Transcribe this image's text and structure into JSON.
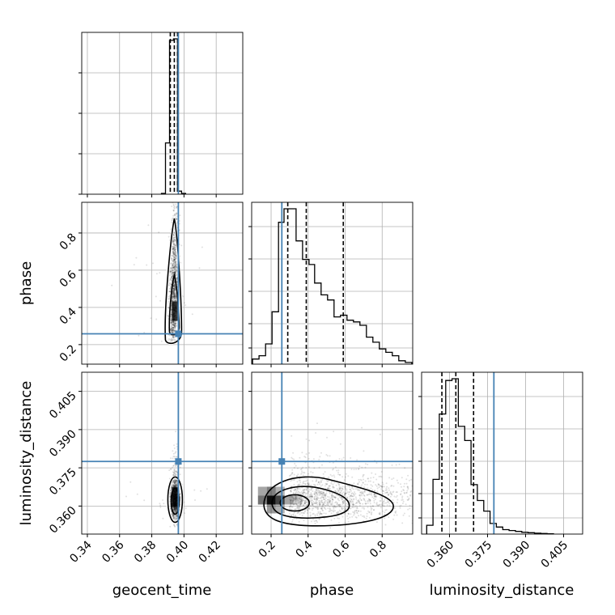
{
  "chart_data": {
    "type": "scatter",
    "title": "",
    "parameters": [
      "geocent_time",
      "phase",
      "luminosity_distance"
    ],
    "truths": {
      "geocent_time": 0.3965,
      "phase": 0.258,
      "luminosity_distance": 0.3775
    },
    "quantiles": {
      "geocent_time": [
        0.3915,
        0.394,
        0.396
      ],
      "phase": [
        0.29,
        0.39,
        0.59
      ],
      "luminosity_distance": [
        0.357,
        0.3625,
        0.3695
      ]
    },
    "ranges": {
      "geocent_time": [
        0.3365,
        0.4365
      ],
      "phase": [
        0.095,
        0.965
      ],
      "luminosity_distance": [
        0.349,
        0.4125
      ]
    },
    "axis_labels": {
      "geocent_time": "geocent_time",
      "phase": "phase",
      "luminosity_distance": "luminosity_distance"
    },
    "ticks": {
      "geocent_time": [
        "0.34",
        "0.36",
        "0.38",
        "0.40",
        "0.42"
      ],
      "phase": [
        "0.2",
        "0.4",
        "0.6",
        "0.8"
      ],
      "luminosity_distance": [
        "0.360",
        "0.375",
        "0.390",
        "0.405"
      ]
    },
    "histograms": {
      "geocent_time": {
        "edges": [
          0.386,
          0.3885,
          0.391,
          0.3935,
          0.396,
          0.3985,
          0.401
        ],
        "counts": [
          0.005,
          0.33,
          0.99,
          1.0,
          0.02,
          0.005
        ]
      },
      "phase": {
        "edges": [
          0.1,
          0.135,
          0.17,
          0.205,
          0.24,
          0.27,
          0.3,
          0.335,
          0.37,
          0.405,
          0.435,
          0.47,
          0.505,
          0.54,
          0.575,
          0.61,
          0.645,
          0.68,
          0.715,
          0.75,
          0.785,
          0.82,
          0.855,
          0.89,
          0.925,
          0.96
        ],
        "counts": [
          0.03,
          0.05,
          0.12,
          0.31,
          0.84,
          0.92,
          0.92,
          0.73,
          0.62,
          0.59,
          0.48,
          0.41,
          0.38,
          0.28,
          0.29,
          0.26,
          0.25,
          0.23,
          0.16,
          0.13,
          0.09,
          0.07,
          0.05,
          0.02,
          0.01
        ]
      },
      "luminosity_distance": {
        "edges": [
          0.351,
          0.3535,
          0.356,
          0.3585,
          0.361,
          0.3635,
          0.366,
          0.3685,
          0.371,
          0.3735,
          0.376,
          0.3785,
          0.381,
          0.3835,
          0.386,
          0.3885,
          0.391,
          0.3935,
          0.396,
          0.3985,
          0.401
        ],
        "counts": [
          0.05,
          0.31,
          0.68,
          0.87,
          0.88,
          0.61,
          0.53,
          0.28,
          0.19,
          0.13,
          0.06,
          0.04,
          0.025,
          0.02,
          0.015,
          0.01,
          0.008,
          0.005,
          0.003,
          0.002
        ]
      }
    },
    "scatter_centers": {
      "geocent_time_vs_phase": {
        "x": 0.3945,
        "y": 0.38
      },
      "geocent_time_vs_luminosity_distance": {
        "x": 0.3945,
        "y": 0.3635
      },
      "phase_vs_luminosity_distance": {
        "x": 0.4,
        "y": 0.3625
      }
    }
  }
}
